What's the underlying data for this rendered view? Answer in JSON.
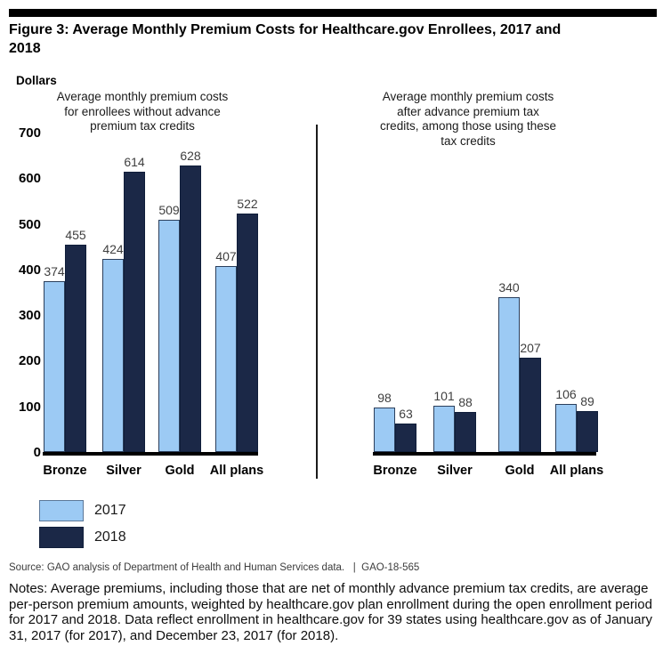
{
  "figure": {
    "title": "Figure 3: Average Monthly Premium Costs for Healthcare.gov Enrollees, 2017 and\n2018",
    "dollars_label": "Dollars",
    "source_text": "Source: GAO analysis of Department of Health and Human Services data.",
    "source_separator": "|",
    "report_id": "GAO-18-565",
    "notes_text": "Notes: Average premiums, including those that are net of monthly advance premium tax credits, are average per-person premium amounts, weighted by healthcare.gov plan enrollment during the open enrollment period for 2017 and 2018. Data reflect enrollment in healthcare.gov for 39 states using healthcare.gov as of January 31, 2017 (for 2017), and December 23, 2017 (for 2018)."
  },
  "legend": {
    "items": [
      {
        "label": "2017",
        "color": "#9CCAF4",
        "border": "#5C7899"
      },
      {
        "label": "2018",
        "color": "#1B2847",
        "border": "#101E3A"
      }
    ]
  },
  "colors": {
    "bar_2017_fill": "#9CCAF4",
    "bar_2017_border": "#2B3F5C",
    "bar_2018_fill": "#1B2847",
    "bar_2018_border": "#101E3A",
    "axis_line": "#000000",
    "value_label": "#3f3f3f"
  },
  "chart_data": [
    {
      "type": "bar",
      "title": "Average monthly premium costs\nfor enrollees without advance\npremium tax credits",
      "categories": [
        "Bronze",
        "Silver",
        "Gold",
        "All plans"
      ],
      "series": [
        {
          "name": "2017",
          "values": [
            374,
            424,
            509,
            407
          ]
        },
        {
          "name": "2018",
          "values": [
            455,
            614,
            628,
            522
          ]
        }
      ],
      "ylabel": "Dollars",
      "ylim": [
        0,
        700
      ],
      "yticks": [
        0,
        100,
        200,
        300,
        400,
        500,
        600,
        700
      ],
      "grid": false,
      "legend_position": "below-left",
      "value_labels": true
    },
    {
      "type": "bar",
      "title": "Average monthly premium costs\nafter advance premium tax\ncredits, among those using these\ntax credits",
      "categories": [
        "Bronze",
        "Silver",
        "Gold",
        "All plans"
      ],
      "series": [
        {
          "name": "2017",
          "values": [
            98,
            101,
            340,
            106
          ]
        },
        {
          "name": "2018",
          "values": [
            63,
            88,
            207,
            89
          ]
        }
      ],
      "ylabel": "",
      "ylim": [
        0,
        700
      ],
      "yticks": [],
      "grid": false,
      "value_labels": true
    }
  ]
}
